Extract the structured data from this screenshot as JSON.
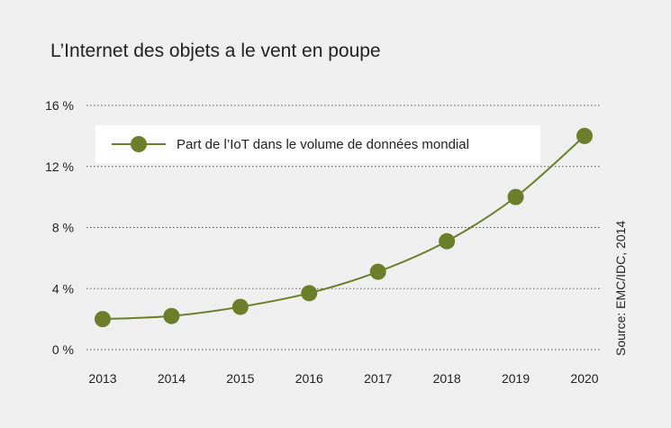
{
  "chart_data": {
    "type": "line",
    "title": "L’Internet des objets a le vent en poupe",
    "x": [
      "2013",
      "2014",
      "2015",
      "2016",
      "2017",
      "2018",
      "2019",
      "2020"
    ],
    "series": [
      {
        "name": "Part de l’IoT dans le volume de données mondial",
        "values": [
          2.0,
          2.2,
          2.8,
          3.7,
          5.1,
          7.1,
          10.0,
          14.0
        ],
        "color": "#6b7f2a"
      }
    ],
    "ylim": [
      0,
      16
    ],
    "yticks": [
      {
        "value": 0,
        "label": "0 %"
      },
      {
        "value": 4,
        "label": "4 %"
      },
      {
        "value": 8,
        "label": "8 %"
      },
      {
        "value": 12,
        "label": "12 %"
      },
      {
        "value": 16,
        "label": "16 %"
      }
    ],
    "grid": "dotted-horizontal",
    "legend_position": "top-left",
    "source": "Source: EMC/IDC, 2014"
  }
}
